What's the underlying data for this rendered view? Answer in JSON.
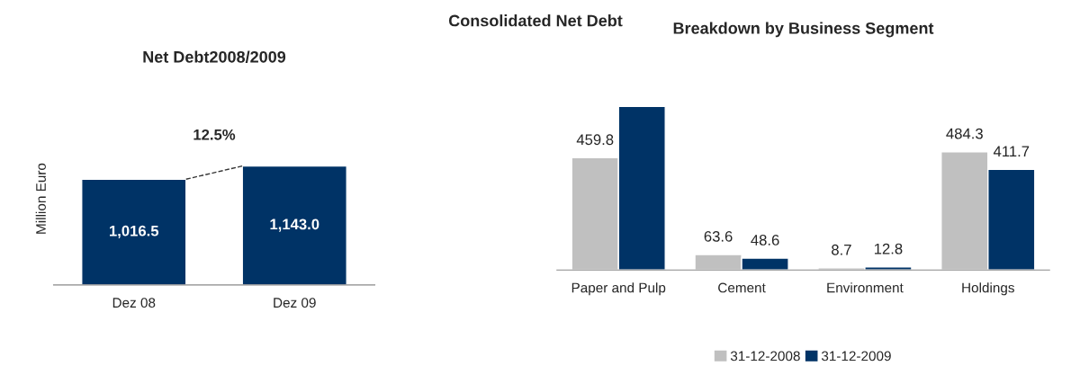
{
  "chart_data": [
    {
      "type": "bar",
      "title": "Net Debt2008/2009",
      "ylabel": "Million Euro",
      "categories": [
        "Dez 08",
        "Dez 09"
      ],
      "series": [
        {
          "color": "#003366",
          "values": [
            1016.5,
            1143.0
          ],
          "value_labels": [
            "1,016.5",
            "1,143.0"
          ]
        }
      ],
      "annotations": [
        "Consolidated Net Debt",
        "12.5%"
      ],
      "legend": false,
      "grid": false
    },
    {
      "type": "bar",
      "title": "Breakdown by Business Segment",
      "categories": [
        "Paper and Pulp",
        "Cement",
        "Environment",
        "Holdings"
      ],
      "series": [
        {
          "name": "31-12-2008",
          "color": "#c0c0c0",
          "values": [
            459.8,
            63.6,
            8.7,
            484.3
          ],
          "value_labels": [
            "459.8",
            "63.6",
            "8.7",
            "484.3"
          ]
        },
        {
          "name": "31-12-2009",
          "color": "#003366",
          "values": [
            670,
            48.6,
            12.8,
            411.7
          ],
          "value_labels": [
            null,
            "48.6",
            "12.8",
            "411.7"
          ]
        }
      ],
      "legend": "bottom",
      "grid": false
    }
  ]
}
